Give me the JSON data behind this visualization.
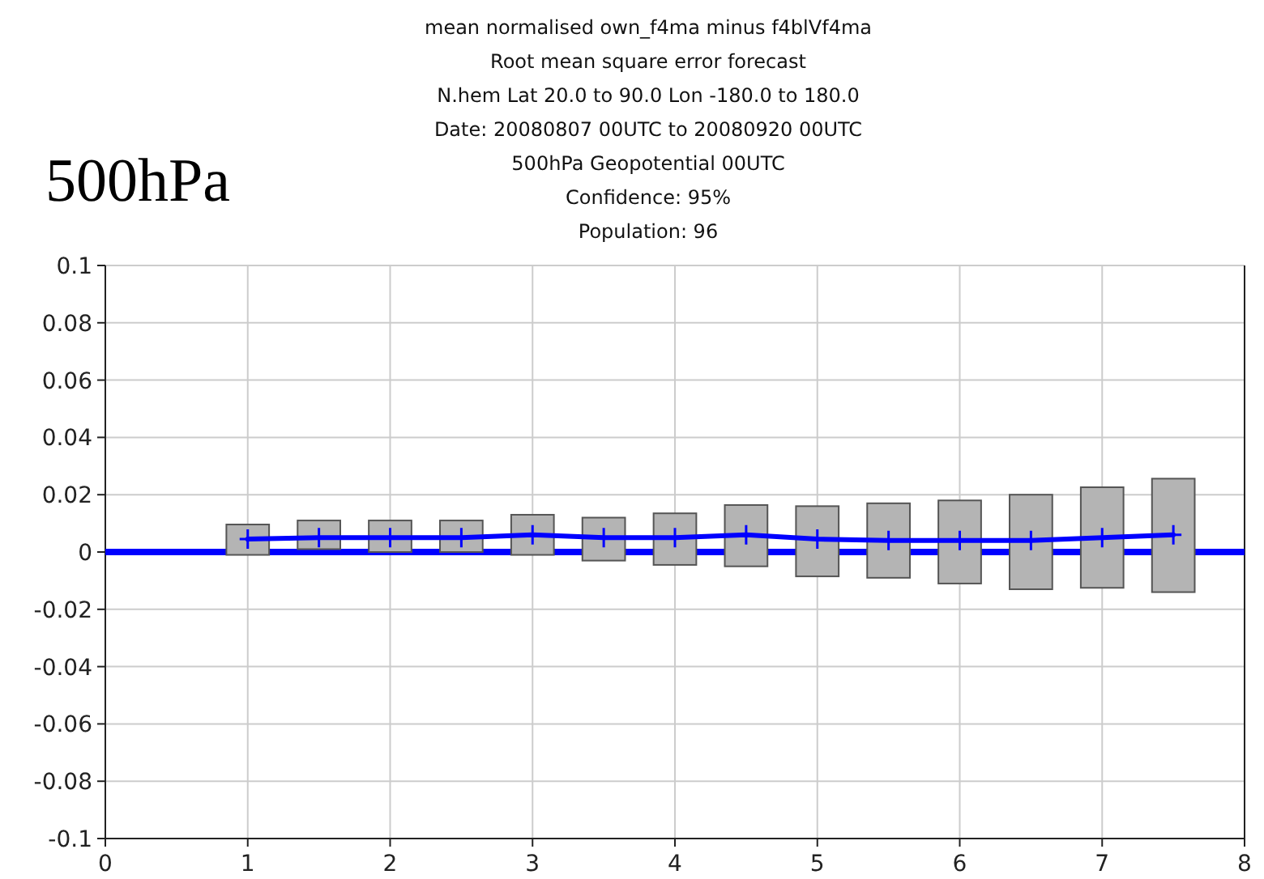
{
  "chart_data": {
    "type": "line",
    "title": "mean normalised  own_f4ma  minus  f4blVf4ma",
    "subtitle": "Root mean square error forecast\nN.hem  Lat  20.0 to 90.0 Lon  -180.0  to  180.0\nDate: 20080807 00UTC to 20080920 00UTC\n500hPa Geopotential 00UTC\nConfidence: 95%\nPopulation: 96",
    "annotations": [
      "500hPa"
    ],
    "x": [
      1,
      1.5,
      2,
      2.5,
      3,
      3.5,
      4,
      4.5,
      5,
      5.5,
      6,
      6.5,
      7,
      7.5
    ],
    "series": [
      {
        "type": "bar",
        "color": "#b4b4b4",
        "base": [
          -0.001,
          0.001,
          0,
          0,
          -0.001,
          -0.003,
          -0.0045,
          -0.005,
          -0.0085,
          -0.009,
          -0.011,
          -0.013,
          -0.0125,
          -0.014
        ],
        "values": [
          0.0106,
          0.01,
          0.011,
          0.011,
          0.014,
          0.015,
          0.018,
          0.0214,
          0.0245,
          0.026,
          0.029,
          0.033,
          0.0351,
          0.0396
        ]
      },
      {
        "color": "#0000ff",
        "values": [
          0.0045,
          0.005,
          0.005,
          0.005,
          0.006,
          0.005,
          0.005,
          0.006,
          0.0045,
          0.004,
          0.004,
          0.004,
          0.005,
          0.006
        ]
      }
    ],
    "xlim": [
      0,
      8
    ],
    "xticks": [
      0,
      1,
      2,
      3,
      4,
      5,
      6,
      7,
      8
    ],
    "ylim": [
      -0.1,
      0.1
    ],
    "yticks": [
      -0.1,
      -0.08,
      -0.06,
      -0.04,
      -0.02,
      0,
      0.02,
      0.04,
      0.06,
      0.08,
      0.1
    ],
    "ref_lines": [
      {
        "axis": "y",
        "value": 0,
        "color": "#0000ff"
      }
    ],
    "grid": true,
    "marker": "cross",
    "line_style": "solid"
  }
}
